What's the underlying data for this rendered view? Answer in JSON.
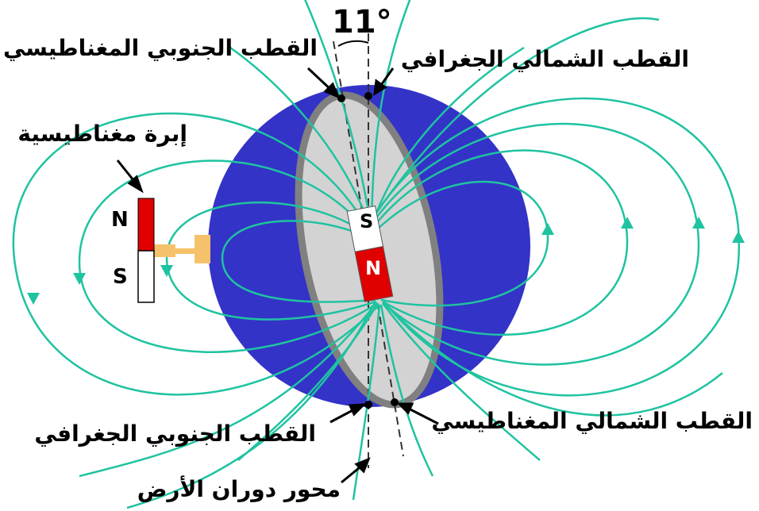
{
  "angle_label": "11°",
  "labels": {
    "south_magnetic_pole": "القطب الجنوبي المغناطيسي",
    "north_geographic_pole": "القطب الشمالي الجغرافي",
    "magnetic_needle": "إبرة مغناطيسية",
    "south_geographic_pole": "القطب الجنوبي الجغرافي",
    "north_magnetic_pole": "القطب الشمالي المغناطيسي",
    "rotation_axis": "محور دوران الأرض"
  },
  "bar_magnet": {
    "top": "S",
    "bottom": "N"
  },
  "needle": {
    "top": "N",
    "bottom": "S"
  },
  "colors": {
    "earth": "#3333c8",
    "core": "#d3d3d3",
    "core_rim": "#808080",
    "field_lines": "#1fc3a0",
    "magnet_red": "#e00000",
    "needle_mount": "#f5c26b"
  }
}
